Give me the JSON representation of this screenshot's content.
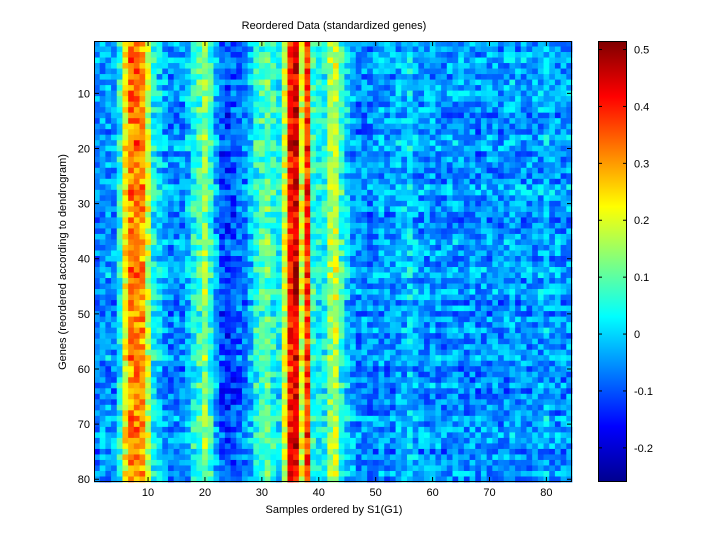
{
  "chart_data": {
    "type": "heatmap",
    "title": "Reordered Data (standardized genes)",
    "xlabel": "Samples ordered by S1(G1)",
    "ylabel": "Genes (reordered according to dendrogram)",
    "n_cols": 84,
    "n_rows": 80,
    "xlim": [
      0.5,
      84.5
    ],
    "ylim": [
      0.5,
      80.5
    ],
    "xticks": [
      10,
      20,
      30,
      40,
      50,
      60,
      70,
      80
    ],
    "yticks": [
      10,
      20,
      30,
      40,
      50,
      60,
      70,
      80
    ],
    "colorbar": {
      "colormap": "jet",
      "clim": [
        -0.26,
        0.515
      ],
      "ticks": [
        -0.2,
        -0.1,
        0,
        0.1,
        0.2,
        0.3,
        0.4,
        0.5
      ],
      "tick_labels": [
        "-0.2",
        "-0.1",
        "0",
        "0.1",
        "0.2",
        "0.3",
        "0.4",
        "0.5"
      ]
    },
    "column_profile": [
      -0.06,
      -0.05,
      -0.04,
      -0.05,
      0.05,
      0.22,
      0.32,
      0.33,
      0.3,
      0.18,
      0.03,
      0.0,
      -0.04,
      -0.06,
      -0.05,
      -0.05,
      -0.02,
      0.05,
      0.08,
      0.14,
      0.06,
      -0.04,
      -0.1,
      -0.12,
      -0.1,
      -0.08,
      -0.06,
      -0.02,
      0.05,
      0.08,
      0.1,
      0.06,
      0.02,
      0.18,
      0.4,
      0.44,
      0.2,
      0.38,
      0.06,
      0.03,
      0.04,
      0.14,
      0.18,
      0.06,
      0.0,
      -0.04,
      -0.06,
      -0.05,
      -0.06,
      -0.05,
      -0.04,
      -0.05,
      -0.05,
      -0.03,
      -0.03,
      0.0,
      -0.03,
      -0.05,
      -0.05,
      -0.04,
      -0.05,
      -0.06,
      -0.05,
      -0.04,
      -0.05,
      -0.05,
      -0.05,
      -0.06,
      -0.05,
      -0.05,
      -0.05,
      -0.06,
      -0.05,
      -0.03,
      -0.05,
      -0.05,
      -0.05,
      -0.05,
      -0.04,
      -0.02,
      -0.04,
      -0.05,
      -0.05,
      -0.04
    ]
  }
}
